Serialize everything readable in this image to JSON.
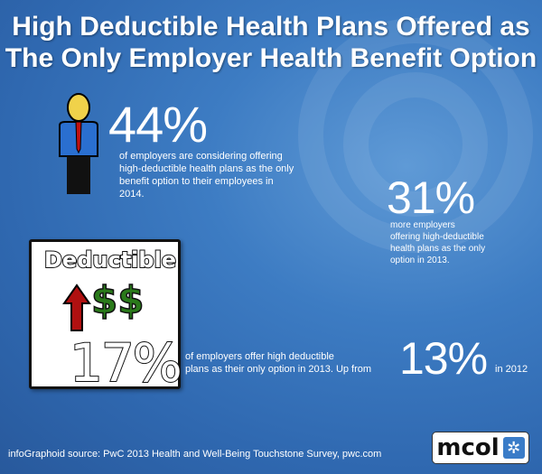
{
  "title": {
    "line1": "High Deductible Health Plans Offered as",
    "line2": "The Only Employer Health Benefit Option"
  },
  "stat1": {
    "value": "44%",
    "text": [
      "of employers are considering offering",
      "high-deductible health plans as the only",
      "benefit option to their employees in",
      "2014."
    ]
  },
  "stat2": {
    "value": "31%",
    "text": [
      "more employers",
      "offering high-deductible",
      "health plans as the only",
      "option in 2013."
    ]
  },
  "deductible_box": {
    "label": "Deductible",
    "dollars": "$$",
    "value": "17%"
  },
  "stat3": {
    "text": [
      "of employers offer high deductible",
      "plans as their only option in 2013. Up from"
    ],
    "value": "13%",
    "suffix": "in 2012"
  },
  "footer": {
    "source": "infoGraphoid source:  PwC 2013 Health and Well-Being Touchstone Survey,  pwc.com",
    "logo": "mcol"
  },
  "colors": {
    "background": "#3d7cc3",
    "arrow": "#b01010",
    "dollar": "#2a7a1a",
    "logo_icon": "#3a7cc8"
  }
}
